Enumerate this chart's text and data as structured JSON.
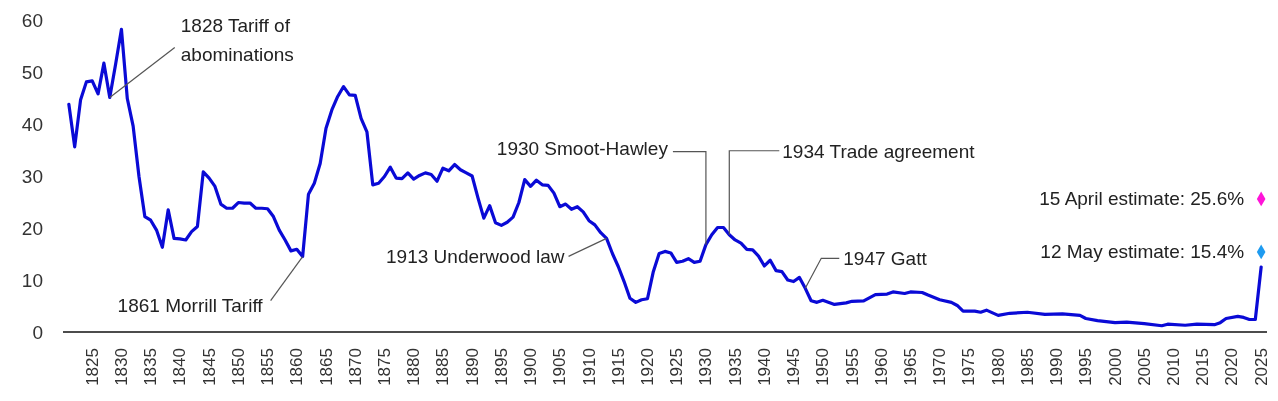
{
  "chart_data": {
    "type": "line",
    "x": [
      1821,
      1822,
      1823,
      1824,
      1825,
      1826,
      1827,
      1828,
      1829,
      1830,
      1831,
      1832,
      1833,
      1834,
      1835,
      1836,
      1837,
      1838,
      1839,
      1840,
      1841,
      1842,
      1843,
      1844,
      1845,
      1846,
      1847,
      1848,
      1849,
      1850,
      1851,
      1852,
      1853,
      1854,
      1855,
      1856,
      1857,
      1858,
      1859,
      1860,
      1861,
      1862,
      1863,
      1864,
      1865,
      1866,
      1867,
      1868,
      1869,
      1870,
      1871,
      1872,
      1873,
      1874,
      1875,
      1876,
      1877,
      1878,
      1879,
      1880,
      1881,
      1882,
      1883,
      1884,
      1885,
      1886,
      1887,
      1888,
      1889,
      1890,
      1891,
      1892,
      1893,
      1894,
      1895,
      1896,
      1897,
      1898,
      1899,
      1900,
      1901,
      1902,
      1903,
      1904,
      1905,
      1906,
      1907,
      1908,
      1909,
      1910,
      1911,
      1912,
      1913,
      1914,
      1915,
      1916,
      1917,
      1918,
      1919,
      1920,
      1921,
      1922,
      1923,
      1924,
      1925,
      1926,
      1927,
      1928,
      1929,
      1930,
      1931,
      1932,
      1933,
      1934,
      1935,
      1936,
      1937,
      1938,
      1939,
      1940,
      1941,
      1942,
      1943,
      1944,
      1945,
      1946,
      1947,
      1948,
      1949,
      1950,
      1952,
      1954,
      1955,
      1957,
      1959,
      1961,
      1962,
      1964,
      1965,
      1967,
      1968,
      1970,
      1972,
      1973,
      1974,
      1976,
      1977,
      1978,
      1980,
      1982,
      1985,
      1988,
      1991,
      1994,
      1995,
      1997,
      2000,
      2002,
      2005,
      2008,
      2009,
      2012,
      2014,
      2017,
      2018,
      2019,
      2021,
      2022,
      2023,
      2024,
      2025
    ],
    "series": [
      {
        "color": "#0a0ad6",
        "values": [
          43.8,
          35.6,
          44.6,
          48.1,
          48.3,
          45.8,
          51.7,
          45.1,
          51.5,
          58.2,
          44.9,
          39.6,
          29.9,
          22.2,
          21.5,
          19.6,
          16.3,
          23.5,
          18.0,
          17.9,
          17.7,
          19.3,
          20.3,
          30.8,
          29.6,
          28.0,
          24.6,
          23.8,
          23.8,
          24.9,
          24.8,
          24.8,
          23.8,
          23.8,
          23.7,
          22.2,
          19.6,
          17.7,
          15.6,
          15.9,
          14.5,
          26.5,
          28.6,
          32.4,
          39.2,
          42.7,
          45.3,
          47.2,
          45.6,
          45.5,
          41.1,
          38.5,
          28.3,
          28.6,
          29.9,
          31.7,
          29.6,
          29.5,
          30.6,
          29.4,
          30.1,
          30.6,
          30.3,
          29.0,
          31.5,
          31.0,
          32.2,
          31.2,
          30.6,
          30.0,
          25.8,
          21.9,
          24.3,
          21.0,
          20.5,
          21.1,
          22.1,
          24.9,
          29.3,
          28.0,
          29.2,
          28.3,
          28.2,
          26.7,
          24.1,
          24.6,
          23.6,
          24.1,
          23.1,
          21.4,
          20.6,
          19.1,
          18.0,
          15.1,
          12.6,
          9.7,
          6.5,
          5.7,
          6.2,
          6.4,
          11.6,
          15.1,
          15.5,
          15.2,
          13.4,
          13.6,
          14.1,
          13.4,
          13.6,
          16.8,
          18.7,
          20.1,
          20.1,
          18.7,
          17.7,
          17.1,
          15.9,
          15.8,
          14.6,
          12.7,
          13.8,
          11.8,
          11.6,
          10.0,
          9.7,
          10.5,
          8.4,
          6.0,
          5.7,
          6.1,
          5.3,
          5.6,
          5.9,
          6.0,
          7.2,
          7.3,
          7.7,
          7.4,
          7.7,
          7.6,
          7.1,
          6.2,
          5.7,
          5.1,
          4.0,
          4.0,
          3.8,
          4.2,
          3.2,
          3.6,
          3.8,
          3.4,
          3.5,
          3.2,
          2.6,
          2.2,
          1.8,
          1.9,
          1.6,
          1.2,
          1.5,
          1.3,
          1.5,
          1.4,
          1.8,
          2.6,
          3.0,
          2.8,
          2.4,
          2.4,
          12.5
        ]
      },
      {
        "type": "scatter",
        "x": [
          2025
        ],
        "values": [
          25.6
        ],
        "color": "#ff14d8",
        "marker": "diamond",
        "value_labels": [
          "15 April estimate: 25.6%"
        ]
      },
      {
        "type": "scatter",
        "x": [
          2025
        ],
        "values": [
          15.4
        ],
        "color": "#1e9bf0",
        "marker": "diamond",
        "value_labels": [
          "12 May estimate: 15.4%"
        ]
      }
    ],
    "xlim": [
      1820,
      2026
    ],
    "xticks": [
      1825,
      1830,
      1835,
      1840,
      1845,
      1850,
      1855,
      1860,
      1865,
      1870,
      1875,
      1880,
      1885,
      1890,
      1895,
      1900,
      1905,
      1910,
      1915,
      1920,
      1925,
      1930,
      1935,
      1940,
      1945,
      1950,
      1955,
      1960,
      1965,
      1970,
      1975,
      1980,
      1985,
      1990,
      1995,
      2000,
      2005,
      2010,
      2015,
      2020,
      2025
    ],
    "ylim": [
      0,
      60
    ],
    "yticks": [
      0,
      10,
      20,
      30,
      40,
      50,
      60
    ],
    "grid": false,
    "legend": false,
    "annotations": [
      {
        "text": "1828 Tariff of abominations",
        "x": 1828,
        "y": 45.1
      },
      {
        "text": "1861 Morrill Tariff",
        "x": 1861,
        "y": 14.5
      },
      {
        "text": "1913 Underwood law",
        "x": 1913,
        "y": 18.0
      },
      {
        "text": "1930 Smoot-Hawley",
        "x": 1930,
        "y": 16.8
      },
      {
        "text": "1934 Trade agreement",
        "x": 1934,
        "y": 18.7
      },
      {
        "text": "1947 Gatt",
        "x": 1947,
        "y": 8.4
      }
    ]
  }
}
